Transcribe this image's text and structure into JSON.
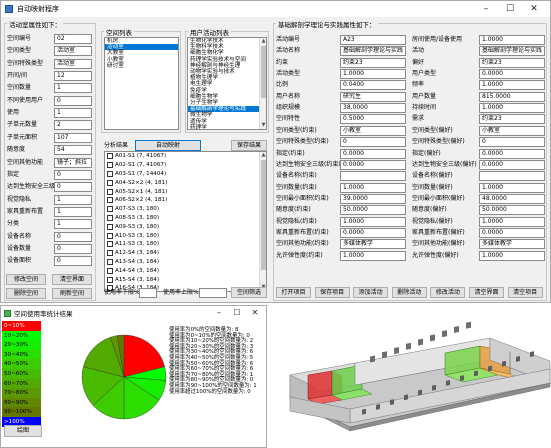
{
  "window_main": {
    "title": "自动映射程序"
  },
  "left_panel": {
    "title": "活动室属性如下：",
    "fields": [
      {
        "label": "空间编号",
        "value": "02"
      },
      {
        "label": "空间类型",
        "value": "活动室"
      },
      {
        "label": "空间特殊类型",
        "value": "活动室"
      },
      {
        "label": "开间/间",
        "value": "12"
      },
      {
        "label": "空间数量",
        "value": "1"
      },
      {
        "label": "不同使用用户",
        "value": "0"
      },
      {
        "label": "使用",
        "value": "1"
      },
      {
        "label": "子单元数量",
        "value": "2"
      },
      {
        "label": "子单元面积",
        "value": "107"
      },
      {
        "label": "随意度",
        "value": "54"
      },
      {
        "label": "空间其他功能",
        "value": "镜子；斜拉"
      },
      {
        "label": "指定",
        "value": "0"
      },
      {
        "label": "达到生物安全三级",
        "value": "0"
      },
      {
        "label": "视觉隐私",
        "value": "1"
      },
      {
        "label": "家具重新布置",
        "value": "1"
      },
      {
        "label": "分类",
        "value": "1"
      },
      {
        "label": "设备名称",
        "value": "0"
      },
      {
        "label": "设备数量",
        "value": "0"
      },
      {
        "label": "设备面积",
        "value": "0"
      }
    ],
    "buttons": [
      "修改空间",
      "清空界面",
      "删除空间",
      "刷新空间"
    ]
  },
  "space_list": {
    "title": "空间列表",
    "items": [
      "机房",
      "活动室",
      "大教室",
      "小教室",
      "研讨室"
    ],
    "selected": 1
  },
  "activity_list": {
    "title": "用户活动列表",
    "items": [
      "生物化学技术",
      "生物科学技术",
      "细胞生物化学",
      "药理学实验技术与空间",
      "神经解剖与神经生理",
      "动物学实验与技术",
      "植物生理学",
      "电生理学",
      "免疫学",
      "细胞生物学",
      "分子生物学",
      "基础解剖学理论与实践",
      "微生物学",
      "遗传学",
      "药理学",
      "生物医学研究",
      "医学实验技术",
      "临床医学技术",
      "医学影像学",
      "医学检验技术",
      "解剖学",
      "组织学",
      "生理学"
    ],
    "selected": 11
  },
  "auto_map_button": "自动映射",
  "analysis": {
    "title": "分析结果",
    "save_button": "保存结果",
    "items": [
      "A01-S1 (7, 41067)",
      "A02-S1 (7, 41067)",
      "A03-S1 (7, 14404)",
      "A04-S2×2 (4, 181)",
      "A05-S2×1 (4, 181)",
      "A06-S2×2 (4, 181)",
      "A07-S3 (3, 180)",
      "A08-S3 (3, 180)",
      "A09-S3 (3, 180)",
      "A10-S3 (3, 180)",
      "A11-S3 (3, 180)",
      "A12-S4 (3, 184)",
      "A13-S4 (3, 184)",
      "A14-S4 (3, 184)",
      "A15-S4 (3, 184)",
      "A16-S4 (3, 184)"
    ],
    "filter_lower_label": "使用率下限%",
    "filter_upper_label": "使用率上限%",
    "filter_button": "空间筛选"
  },
  "right_panel": {
    "title": "基础解剖学理论与实践属性如下：",
    "rows": [
      {
        "l1": "活动编号",
        "v1": "A23",
        "l2": "房间使用/设备使用",
        "v2": "1.0000"
      },
      {
        "l1": "活动名称",
        "v1": "基础解剖学理论与实践",
        "l2": "活动",
        "v2": "基础解剖学理论与实践"
      },
      {
        "l1": "约束",
        "v1": "约束23",
        "l2": "偏好",
        "v2": "约束23"
      },
      {
        "l1": "活动类型",
        "v1": "1.0000",
        "l2": "用户类型",
        "v2": "0.0000"
      },
      {
        "l1": "比例",
        "v1": "0.0400",
        "l2": "频率",
        "v2": "1.0000"
      },
      {
        "l1": "用户名称",
        "v1": "研究生",
        "l2": "用户数量",
        "v2": "815.0000"
      },
      {
        "l1": "组织规模",
        "v1": "38.0000",
        "l2": "持续时间",
        "v2": "1.0000"
      },
      {
        "l1": "空间特性",
        "v1": "0.5000",
        "l2": "需求",
        "v2": "约束23"
      },
      {
        "l1": "空间类型(约束)",
        "v1": "小教室",
        "l2": "空间类型(偏好)",
        "v2": "小教室"
      },
      {
        "l1": "空间特殊类型(约束)",
        "v1": "0",
        "l2": "空间特殊类型(偏好)",
        "v2": "0"
      },
      {
        "l1": "指定(约束)",
        "v1": "0.0000",
        "l2": "指定(偏好)",
        "v2": "0.0000"
      },
      {
        "l1": "达到生物安全三级(约束)",
        "v1": "0.0000",
        "l2": "达到生物安全三级(偏好)",
        "v2": "0.0000"
      },
      {
        "l1": "设备名称(约束)",
        "v1": "",
        "l2": "设备名称(偏好)",
        "v2": ""
      },
      {
        "l1": "空间数量(约束)",
        "v1": "1.0000",
        "l2": "空间数量(偏好)",
        "v2": "1.0000"
      },
      {
        "l1": "空间最小面积(约束)",
        "v1": "39.0000",
        "l2": "空间最小面积(偏好)",
        "v2": "48.0000"
      },
      {
        "l1": "随意度(约束)",
        "v1": "50.0000",
        "l2": "随意度(偏好)",
        "v2": "50.0000"
      },
      {
        "l1": "视觉隐私(约束)",
        "v1": "1.0000",
        "l2": "视觉隐私(偏好)",
        "v2": "1.0000"
      },
      {
        "l1": "家具重新布置(约束)",
        "v1": "0.0000",
        "l2": "家具重新布置(偏好)",
        "v2": "0.0000"
      },
      {
        "l1": "空间其他功能(约束)",
        "v1": "多媒体教学",
        "l2": "空间其他功能(偏好)",
        "v2": "多媒体教学"
      },
      {
        "l1": "允许弹性度(约束)",
        "v1": "1.0000",
        "l2": "允许弹性度(偏好)",
        "v2": "1.0000"
      }
    ],
    "buttons": [
      "打开项目",
      "保存项目",
      "添加活动",
      "删除活动",
      "修改活动",
      "清空界面",
      "清空项目"
    ]
  },
  "window_stats": {
    "title": "空间使用率统计结果",
    "legend": [
      {
        "label": "0~10%",
        "color": "#ff0000"
      },
      {
        "label": "10~20%",
        "color": "#00ff00"
      },
      {
        "label": "20~30%",
        "color": "#16ee00"
      },
      {
        "label": "30~40%",
        "color": "#2cdd00"
      },
      {
        "label": "40~50%",
        "color": "#3ccc00"
      },
      {
        "label": "50~60%",
        "color": "#48bb00"
      },
      {
        "label": "60~70%",
        "color": "#52aa00"
      },
      {
        "label": "70~80%",
        "color": "#5a9900"
      },
      {
        "label": "80~90%",
        "color": "#608800"
      },
      {
        "label": "90~100%",
        "color": "#667700"
      },
      {
        "label": ">100%",
        "color": "#0000ff"
      }
    ],
    "stats": [
      "使用率为0%的空间数量为: 8",
      "使用率为0~10%的空间数量为: 0",
      "使用率为10~20%的空间数量为: 2",
      "使用率为20~30%的空间数量为: 3",
      "使用率为30~40%的空间数量为: 6",
      "使用率为40~50%的空间数量为: 5",
      "使用率为50~60%的空间数量为: 6",
      "使用率为60~70%的空间数量为: 6",
      "使用率为70~80%的空间数量为: 1",
      "使用率为80~90%的空间数量为: 0",
      "使用率为90~100%的空间数量为: 1",
      "使用率超过100%的空间数量为: 0"
    ],
    "draw_button": "绘图"
  },
  "chart_data": {
    "type": "pie",
    "categories": [
      "0%",
      "0~10%",
      "10~20%",
      "20~30%",
      "30~40%",
      "40~50%",
      "50~60%",
      "60~70%",
      "70~80%",
      "80~90%",
      "90~100%",
      ">100%"
    ],
    "values": [
      8,
      0,
      2,
      3,
      6,
      5,
      6,
      6,
      1,
      0,
      1,
      0
    ],
    "colors": [
      "#ff0000",
      "#ff0000",
      "#00ff00",
      "#16ee00",
      "#2cdd00",
      "#3ccc00",
      "#48bb00",
      "#52aa00",
      "#5a9900",
      "#608800",
      "#667700",
      "#0000ff"
    ]
  }
}
